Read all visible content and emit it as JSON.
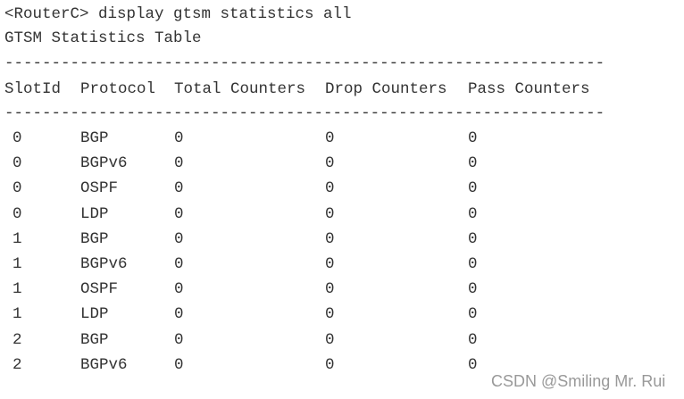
{
  "command": "<RouterC> display gtsm statistics all",
  "title": "GTSM Statistics Table",
  "separator": "----------------------------------------------------------------",
  "table": {
    "header": [
      "SlotId",
      "Protocol",
      "Total Counters",
      "Drop Counters",
      "Pass Counters"
    ],
    "rows": [
      [
        "0",
        "BGP",
        "0",
        "0",
        "0"
      ],
      [
        "0",
        "BGPv6",
        "0",
        "0",
        "0"
      ],
      [
        "0",
        "OSPF",
        "0",
        "0",
        "0"
      ],
      [
        "0",
        "LDP",
        "0",
        "0",
        "0"
      ],
      [
        "1",
        "BGP",
        "0",
        "0",
        "0"
      ],
      [
        "1",
        "BGPv6",
        "0",
        "0",
        "0"
      ],
      [
        "1",
        "OSPF",
        "0",
        "0",
        "0"
      ],
      [
        "1",
        "LDP",
        "0",
        "0",
        "0"
      ],
      [
        "2",
        "BGP",
        "0",
        "0",
        "0"
      ],
      [
        "2",
        "BGPv6",
        "0",
        "0",
        "0"
      ]
    ]
  },
  "watermark": "CSDN @Smiling Mr. Rui"
}
